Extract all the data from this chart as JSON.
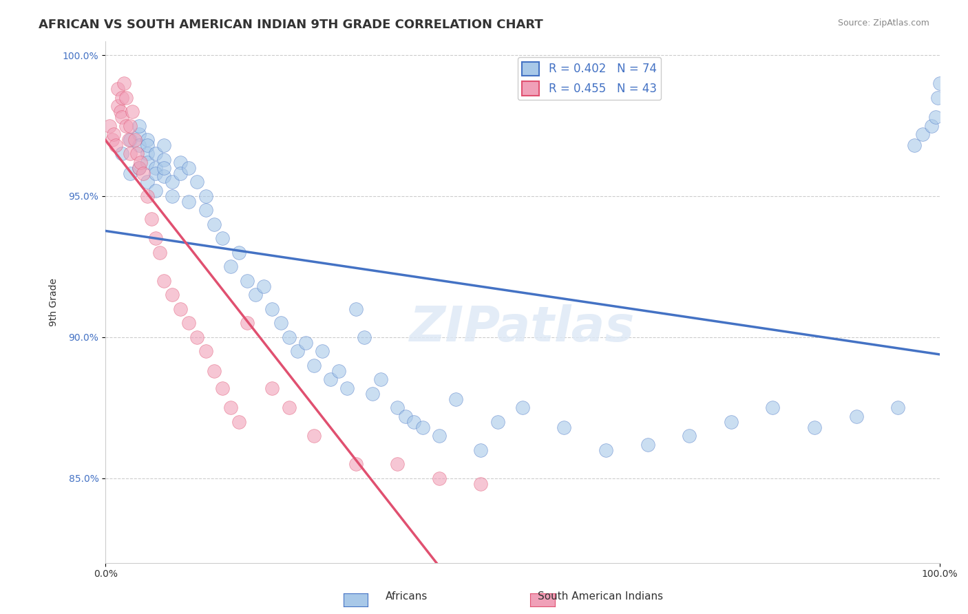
{
  "title": "AFRICAN VS SOUTH AMERICAN INDIAN 9TH GRADE CORRELATION CHART",
  "source_text": "Source: ZipAtlas.com",
  "xlabel_ticks": [
    "0.0%",
    "100.0%"
  ],
  "ylabel_label": "9th Grade",
  "xlim": [
    0.0,
    1.0
  ],
  "ylim": [
    0.82,
    1.005
  ],
  "yticks": [
    0.85,
    0.9,
    0.95,
    1.0
  ],
  "ytick_labels": [
    "85.0%",
    "90.0%",
    "95.0%",
    "100.0%"
  ],
  "xtick_labels": [
    "0.0%",
    "100.0%"
  ],
  "legend_entries": [
    {
      "label": "R = 0.402   N = 74",
      "color": "#7eb3e0"
    },
    {
      "label": "R = 0.455   N = 43",
      "color": "#f0a0b0"
    }
  ],
  "footer_labels": [
    "Africans",
    "South American Indians"
  ],
  "footer_colors": [
    "#7eb3e0",
    "#f0a0b0"
  ],
  "watermark": "ZIPatlas",
  "blue_scatter_x": [
    0.02,
    0.03,
    0.03,
    0.04,
    0.04,
    0.04,
    0.04,
    0.05,
    0.05,
    0.05,
    0.05,
    0.05,
    0.06,
    0.06,
    0.06,
    0.06,
    0.07,
    0.07,
    0.07,
    0.07,
    0.08,
    0.08,
    0.09,
    0.09,
    0.1,
    0.1,
    0.11,
    0.12,
    0.12,
    0.13,
    0.14,
    0.15,
    0.16,
    0.17,
    0.18,
    0.19,
    0.2,
    0.21,
    0.22,
    0.23,
    0.24,
    0.25,
    0.26,
    0.27,
    0.28,
    0.29,
    0.3,
    0.31,
    0.32,
    0.33,
    0.35,
    0.36,
    0.37,
    0.38,
    0.4,
    0.42,
    0.45,
    0.47,
    0.5,
    0.55,
    0.6,
    0.65,
    0.7,
    0.75,
    0.8,
    0.85,
    0.9,
    0.95,
    0.97,
    0.98,
    0.99,
    0.995,
    0.998,
    1.0
  ],
  "blue_scatter_y": [
    0.965,
    0.97,
    0.958,
    0.972,
    0.968,
    0.96,
    0.975,
    0.965,
    0.97,
    0.955,
    0.962,
    0.968,
    0.96,
    0.952,
    0.965,
    0.958,
    0.963,
    0.957,
    0.96,
    0.968,
    0.955,
    0.95,
    0.962,
    0.958,
    0.96,
    0.948,
    0.955,
    0.945,
    0.95,
    0.94,
    0.935,
    0.925,
    0.93,
    0.92,
    0.915,
    0.918,
    0.91,
    0.905,
    0.9,
    0.895,
    0.898,
    0.89,
    0.895,
    0.885,
    0.888,
    0.882,
    0.91,
    0.9,
    0.88,
    0.885,
    0.875,
    0.872,
    0.87,
    0.868,
    0.865,
    0.878,
    0.86,
    0.87,
    0.875,
    0.868,
    0.86,
    0.862,
    0.865,
    0.87,
    0.875,
    0.868,
    0.872,
    0.875,
    0.968,
    0.972,
    0.975,
    0.978,
    0.985,
    0.99
  ],
  "pink_scatter_x": [
    0.005,
    0.008,
    0.01,
    0.012,
    0.015,
    0.015,
    0.018,
    0.02,
    0.02,
    0.022,
    0.025,
    0.025,
    0.028,
    0.03,
    0.03,
    0.032,
    0.035,
    0.038,
    0.04,
    0.042,
    0.045,
    0.05,
    0.055,
    0.06,
    0.065,
    0.07,
    0.08,
    0.09,
    0.1,
    0.11,
    0.12,
    0.13,
    0.14,
    0.15,
    0.16,
    0.17,
    0.2,
    0.22,
    0.25,
    0.3,
    0.35,
    0.4,
    0.45
  ],
  "pink_scatter_y": [
    0.975,
    0.97,
    0.972,
    0.968,
    0.982,
    0.988,
    0.98,
    0.985,
    0.978,
    0.99,
    0.975,
    0.985,
    0.97,
    0.965,
    0.975,
    0.98,
    0.97,
    0.965,
    0.96,
    0.962,
    0.958,
    0.95,
    0.942,
    0.935,
    0.93,
    0.92,
    0.915,
    0.91,
    0.905,
    0.9,
    0.895,
    0.888,
    0.882,
    0.875,
    0.87,
    0.905,
    0.882,
    0.875,
    0.865,
    0.855,
    0.855,
    0.85,
    0.848
  ],
  "blue_line_color": "#4472c4",
  "pink_line_color": "#e05070",
  "blue_scatter_color": "#a8c8e8",
  "pink_scatter_color": "#f0a0b8",
  "grid_color": "#cccccc",
  "title_fontsize": 13,
  "axis_label_fontsize": 10,
  "tick_fontsize": 10,
  "legend_fontsize": 12
}
